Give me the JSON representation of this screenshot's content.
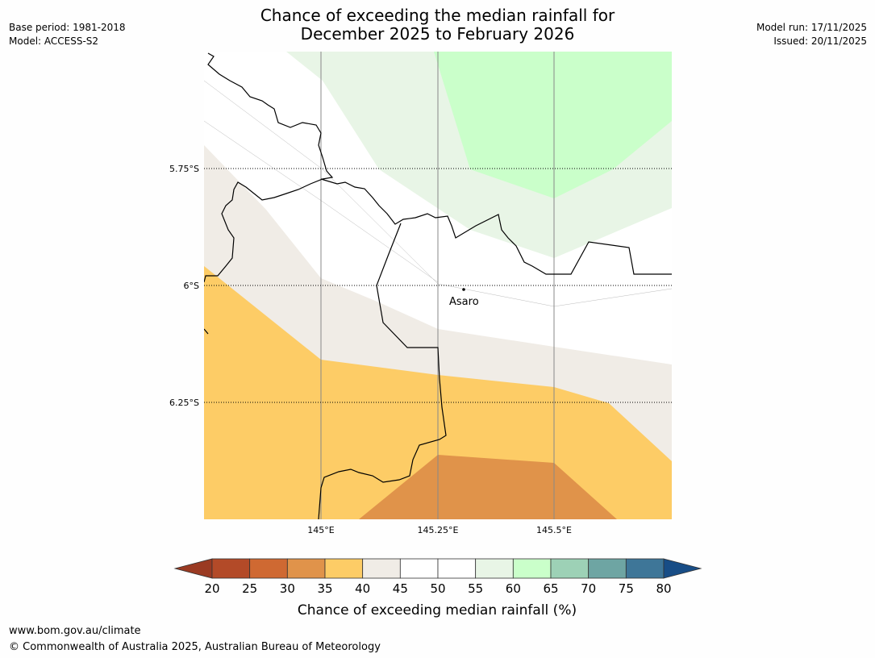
{
  "title": {
    "line1": "Chance of exceeding the median rainfall for",
    "line2": "December 2025 to February 2026"
  },
  "meta_left": {
    "base_period": "Base period: 1981-2018",
    "model": "Model: ACCESS-S2"
  },
  "meta_right": {
    "model_run": "Model run: 17/11/2025",
    "issued": "Issued: 20/11/2025"
  },
  "map": {
    "lat_labels": [
      "5.75°S",
      "6°S",
      "6.25°S"
    ],
    "lon_labels": [
      "145°E",
      "145.25°E",
      "145.5°E"
    ],
    "place": {
      "name": "Asaro"
    }
  },
  "colorbar": {
    "label": "Chance of exceeding median rainfall (%)",
    "ticks": [
      "20",
      "25",
      "30",
      "35",
      "40",
      "45",
      "50",
      "55",
      "60",
      "65",
      "70",
      "75",
      "80"
    ],
    "colors": [
      "#b34a28",
      "#cf6932",
      "#e0934a",
      "#fdcc66",
      "#f0ece6",
      "#ffffff",
      "#ffffff",
      "#e8f5e6",
      "#caffca",
      "#9dd1b6",
      "#6ea5a3",
      "#3e7698"
    ],
    "under_color": "#9a3a22",
    "over_color": "#184d86",
    "neutral_color": "#f0ece6",
    "green_light": "#e8f5e6",
    "green_bright": "#caffca",
    "orange": "#fdcc66",
    "orange_dark": "#e0934a"
  },
  "footer": {
    "url": "www.bom.gov.au/climate",
    "copyright": "© Commonwealth of Australia 2025, Australian Bureau of Meteorology"
  }
}
